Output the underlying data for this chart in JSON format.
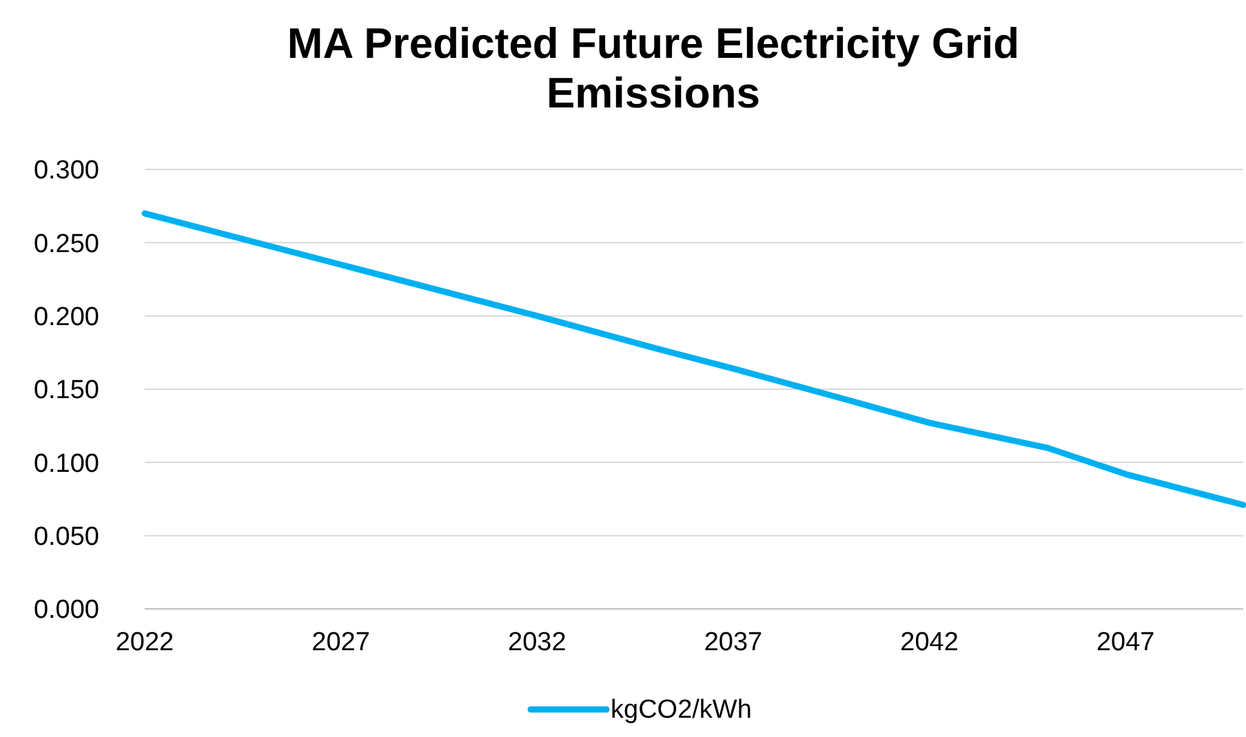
{
  "chart_data": {
    "type": "line",
    "title": "MA Predicted Future Electricity Grid Emissions",
    "x": [
      2022,
      2027,
      2032,
      2035,
      2037,
      2040,
      2042,
      2045,
      2047,
      2050
    ],
    "series": [
      {
        "name": "kgCO2/kWh",
        "color": "#00b0f0",
        "values": [
          0.27,
          0.235,
          0.2,
          0.178,
          0.164,
          0.142,
          0.127,
          0.11,
          0.092,
          0.071
        ]
      }
    ],
    "xlim": [
      2022,
      2050
    ],
    "xticks": [
      2022,
      2027,
      2032,
      2037,
      2042,
      2047
    ],
    "ylim": [
      0,
      0.3
    ],
    "yticks": [
      {
        "value": 0,
        "label": "0.000"
      },
      {
        "value": 0.05,
        "label": "0.050"
      },
      {
        "value": 0.1,
        "label": "0.100"
      },
      {
        "value": 0.15,
        "label": "0.150"
      },
      {
        "value": 0.2,
        "label": "0.200"
      },
      {
        "value": 0.25,
        "label": "0.250"
      },
      {
        "value": 0.3,
        "label": "0.300"
      }
    ],
    "grid": "y",
    "legend": "bottom",
    "marker": "none",
    "line_style": "solid"
  }
}
